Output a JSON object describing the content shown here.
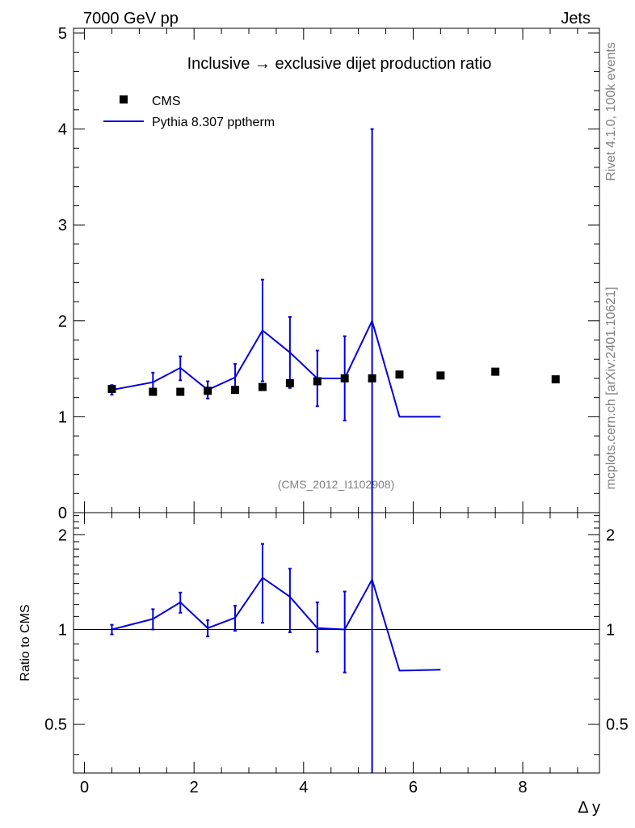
{
  "header": {
    "left": "7000 GeV pp",
    "right": "Jets"
  },
  "side_labels": {
    "rivet": "Rivet 4.1.0,  100k events",
    "mcplots": "mcplots.cern.ch [arXiv:2401.10621]"
  },
  "colors": {
    "mc": "#0000e0",
    "data": "#000000"
  },
  "chart_data": [
    {
      "type": "scatter",
      "title": "Inclusive → exclusive dijet production ratio",
      "watermark": "(CMS_2012_I1102908)",
      "xlim": [
        -0.2,
        9.4
      ],
      "ylim": [
        0,
        5.05
      ],
      "ytick_labels": [
        "0",
        "1",
        "2",
        "3",
        "4",
        "5"
      ],
      "ytick_values": [
        0,
        1,
        2,
        3,
        4,
        5
      ],
      "legend_placement": "top-left",
      "series": [
        {
          "name": "CMS",
          "style": "markers",
          "x": [
            0.5,
            1.25,
            1.75,
            2.25,
            2.75,
            3.25,
            3.75,
            4.25,
            4.75,
            5.25,
            5.75,
            6.5,
            7.5,
            8.6
          ],
          "y": [
            1.29,
            1.26,
            1.26,
            1.27,
            1.28,
            1.31,
            1.35,
            1.37,
            1.4,
            1.4,
            1.44,
            1.43,
            1.47,
            1.39
          ]
        },
        {
          "name": "Pythia 8.307 pptherm",
          "style": "line",
          "x": [
            0.5,
            1.25,
            1.75,
            2.25,
            2.75,
            3.25,
            3.75,
            4.25,
            4.75,
            5.25,
            5.75,
            6.5
          ],
          "y": [
            1.28,
            1.36,
            1.51,
            1.28,
            1.41,
            1.9,
            1.67,
            1.4,
            1.4,
            2.0,
            1.0,
            1.0
          ],
          "err_low": [
            0.05,
            0.13,
            0.13,
            0.09,
            0.14,
            0.53,
            0.37,
            0.29,
            0.44,
            2.0,
            0,
            0
          ],
          "err_high": [
            0.05,
            0.1,
            0.12,
            0.09,
            0.14,
            0.53,
            0.37,
            0.29,
            0.44,
            2.0,
            0,
            0
          ]
        }
      ]
    },
    {
      "type": "line",
      "ylabel": "Ratio to CMS",
      "xlabel": "Δ y",
      "xlim": [
        -0.2,
        9.4
      ],
      "ylim": [
        0.35,
        2.35
      ],
      "xtick_labels": [
        "0",
        "2",
        "4",
        "6",
        "8"
      ],
      "xtick_values": [
        0,
        2,
        4,
        6,
        8
      ],
      "ytick_labels": [
        "0.5",
        "1",
        "2"
      ],
      "ytick_values": [
        0.5,
        1,
        2
      ],
      "reference_line": 1,
      "series": [
        {
          "name": "Pythia 8.307 pptherm",
          "x": [
            0.5,
            1.25,
            1.75,
            2.25,
            2.75,
            3.25,
            3.75,
            4.25,
            4.75,
            5.25,
            5.75,
            6.5
          ],
          "y": [
            1.0,
            1.08,
            1.22,
            1.01,
            1.09,
            1.46,
            1.27,
            1.01,
            1.0,
            1.44,
            0.74,
            0.745
          ],
          "err_low": [
            0.035,
            0.08,
            0.09,
            0.06,
            0.1,
            0.41,
            0.29,
            0.16,
            0.27,
            1.1,
            0,
            0
          ],
          "err_high": [
            0.035,
            0.08,
            0.09,
            0.06,
            0.1,
            0.41,
            0.29,
            0.21,
            0.32,
            1.1,
            0,
            0
          ]
        }
      ]
    }
  ]
}
